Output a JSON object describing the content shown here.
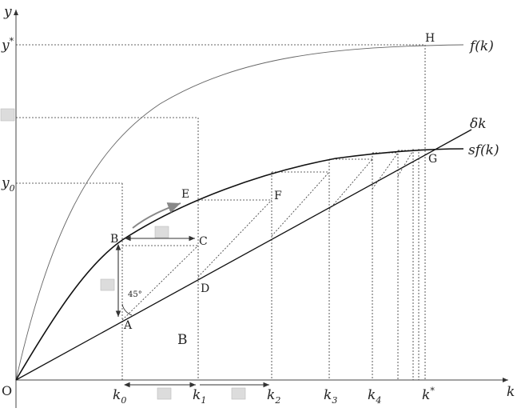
{
  "axes": {
    "y_label": "y",
    "k_label": "k",
    "origin_label": "O"
  },
  "y_ticks": {
    "y_star": {
      "base": "y",
      "sup": "*"
    },
    "y0": {
      "base": "y",
      "sub": "0"
    }
  },
  "k_ticks": [
    {
      "id": "k0",
      "base": "k",
      "sub": "0"
    },
    {
      "id": "k1",
      "base": "k",
      "sub": "1"
    },
    {
      "id": "k2",
      "base": "k",
      "sub": "2"
    },
    {
      "id": "k3",
      "base": "k",
      "sub": "3"
    },
    {
      "id": "k4",
      "base": "k",
      "sub": "4"
    },
    {
      "id": "kstar",
      "base": "k",
      "sup": "*"
    }
  ],
  "curves": {
    "f": "f(k)",
    "sf": "sf(k)",
    "delta": "δk"
  },
  "points": {
    "A": "A",
    "B": "B",
    "C": "C",
    "D": "D",
    "E": "E",
    "F": "F",
    "G": "G",
    "H": "H"
  },
  "region_label": "B",
  "angle_label": "45°"
}
